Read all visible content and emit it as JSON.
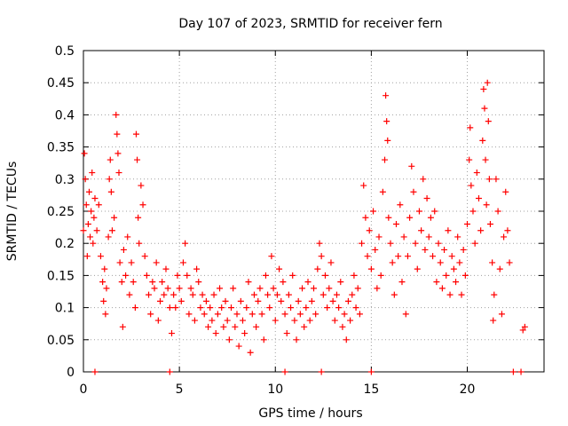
{
  "chart_data": {
    "type": "scatter",
    "title": "Day 107 of 2023, SRMTID for receiver fern",
    "xlabel": "GPS time / hours",
    "ylabel": "SRMTID / TECUs",
    "xlim": [
      0,
      24
    ],
    "ylim": [
      0,
      0.5
    ],
    "grid": true,
    "x_ticks": [
      0,
      5,
      10,
      15,
      20
    ],
    "x_tick_labels": [
      "0",
      "5",
      "10",
      "15",
      "20"
    ],
    "y_ticks": [
      0,
      0.05,
      0.1,
      0.15,
      0.2,
      0.25,
      0.3,
      0.35,
      0.4,
      0.45,
      0.5
    ],
    "y_tick_labels": [
      "0",
      "0.05",
      "0.1",
      "0.15",
      "0.2",
      "0.25",
      "0.3",
      "0.35",
      "0.4",
      "0.45",
      "0.5"
    ],
    "marker": "+",
    "color": "#ff0000",
    "series": [
      {
        "name": "SRMTID",
        "points": [
          [
            0.0,
            0.22
          ],
          [
            0.05,
            0.34
          ],
          [
            0.1,
            0.3
          ],
          [
            0.15,
            0.26
          ],
          [
            0.2,
            0.18
          ],
          [
            0.25,
            0.23
          ],
          [
            0.3,
            0.28
          ],
          [
            0.35,
            0.21
          ],
          [
            0.4,
            0.25
          ],
          [
            0.45,
            0.31
          ],
          [
            0.5,
            0.2
          ],
          [
            0.55,
            0.24
          ],
          [
            0.6,
            0.27
          ],
          [
            0.7,
            0.22
          ],
          [
            0.8,
            0.26
          ],
          [
            0.9,
            0.18
          ],
          [
            1.0,
            0.14
          ],
          [
            1.05,
            0.11
          ],
          [
            1.1,
            0.16
          ],
          [
            1.15,
            0.09
          ],
          [
            1.2,
            0.13
          ],
          [
            1.3,
            0.21
          ],
          [
            1.35,
            0.3
          ],
          [
            1.4,
            0.33
          ],
          [
            1.45,
            0.28
          ],
          [
            1.5,
            0.22
          ],
          [
            1.6,
            0.24
          ],
          [
            1.7,
            0.4
          ],
          [
            1.75,
            0.37
          ],
          [
            1.8,
            0.34
          ],
          [
            1.85,
            0.31
          ],
          [
            1.9,
            0.17
          ],
          [
            2.0,
            0.14
          ],
          [
            2.05,
            0.07
          ],
          [
            2.1,
            0.19
          ],
          [
            2.2,
            0.15
          ],
          [
            2.3,
            0.21
          ],
          [
            2.4,
            0.12
          ],
          [
            2.5,
            0.17
          ],
          [
            2.6,
            0.14
          ],
          [
            2.7,
            0.1
          ],
          [
            2.75,
            0.37
          ],
          [
            2.8,
            0.33
          ],
          [
            2.85,
            0.24
          ],
          [
            2.9,
            0.2
          ],
          [
            3.0,
            0.29
          ],
          [
            3.1,
            0.26
          ],
          [
            3.2,
            0.18
          ],
          [
            3.3,
            0.15
          ],
          [
            3.4,
            0.12
          ],
          [
            3.5,
            0.09
          ],
          [
            3.6,
            0.14
          ],
          [
            3.7,
            0.13
          ],
          [
            3.8,
            0.17
          ],
          [
            3.9,
            0.08
          ],
          [
            4.0,
            0.11
          ],
          [
            4.1,
            0.14
          ],
          [
            4.2,
            0.12
          ],
          [
            4.3,
            0.16
          ],
          [
            4.4,
            0.13
          ],
          [
            4.5,
            0.1
          ],
          [
            4.6,
            0.06
          ],
          [
            4.7,
            0.12
          ],
          [
            4.8,
            0.1
          ],
          [
            4.9,
            0.15
          ],
          [
            5.0,
            0.13
          ],
          [
            5.1,
            0.11
          ],
          [
            5.2,
            0.17
          ],
          [
            5.3,
            0.2
          ],
          [
            5.4,
            0.15
          ],
          [
            5.5,
            0.09
          ],
          [
            5.6,
            0.13
          ],
          [
            5.7,
            0.12
          ],
          [
            5.8,
            0.08
          ],
          [
            5.9,
            0.16
          ],
          [
            6.0,
            0.14
          ],
          [
            6.1,
            0.1
          ],
          [
            6.2,
            0.12
          ],
          [
            6.3,
            0.09
          ],
          [
            6.4,
            0.11
          ],
          [
            6.5,
            0.07
          ],
          [
            6.6,
            0.1
          ],
          [
            6.7,
            0.08
          ],
          [
            6.8,
            0.12
          ],
          [
            6.9,
            0.06
          ],
          [
            7.0,
            0.09
          ],
          [
            7.1,
            0.13
          ],
          [
            7.2,
            0.1
          ],
          [
            7.3,
            0.07
          ],
          [
            7.4,
            0.11
          ],
          [
            7.5,
            0.08
          ],
          [
            7.6,
            0.05
          ],
          [
            7.7,
            0.1
          ],
          [
            7.8,
            0.13
          ],
          [
            7.9,
            0.07
          ],
          [
            8.0,
            0.09
          ],
          [
            8.1,
            0.04
          ],
          [
            8.2,
            0.11
          ],
          [
            8.3,
            0.08
          ],
          [
            8.4,
            0.06
          ],
          [
            8.5,
            0.1
          ],
          [
            8.6,
            0.14
          ],
          [
            8.7,
            0.03
          ],
          [
            8.8,
            0.09
          ],
          [
            8.9,
            0.12
          ],
          [
            9.0,
            0.07
          ],
          [
            9.1,
            0.11
          ],
          [
            9.2,
            0.13
          ],
          [
            9.3,
            0.09
          ],
          [
            9.4,
            0.05
          ],
          [
            9.5,
            0.15
          ],
          [
            9.6,
            0.12
          ],
          [
            9.7,
            0.1
          ],
          [
            9.8,
            0.18
          ],
          [
            9.9,
            0.13
          ],
          [
            10.0,
            0.08
          ],
          [
            10.1,
            0.12
          ],
          [
            10.2,
            0.16
          ],
          [
            10.3,
            0.11
          ],
          [
            10.4,
            0.14
          ],
          [
            10.5,
            0.09
          ],
          [
            10.6,
            0.06
          ],
          [
            10.7,
            0.12
          ],
          [
            10.8,
            0.1
          ],
          [
            10.9,
            0.15
          ],
          [
            11.0,
            0.08
          ],
          [
            11.1,
            0.05
          ],
          [
            11.2,
            0.11
          ],
          [
            11.3,
            0.09
          ],
          [
            11.4,
            0.13
          ],
          [
            11.5,
            0.07
          ],
          [
            11.6,
            0.1
          ],
          [
            11.7,
            0.14
          ],
          [
            11.8,
            0.08
          ],
          [
            11.9,
            0.11
          ],
          [
            12.0,
            0.13
          ],
          [
            12.1,
            0.09
          ],
          [
            12.2,
            0.16
          ],
          [
            12.3,
            0.2
          ],
          [
            12.4,
            0.18
          ],
          [
            12.5,
            0.12
          ],
          [
            12.6,
            0.15
          ],
          [
            12.7,
            0.1
          ],
          [
            12.8,
            0.13
          ],
          [
            12.9,
            0.17
          ],
          [
            13.0,
            0.11
          ],
          [
            13.1,
            0.08
          ],
          [
            13.2,
            0.12
          ],
          [
            13.3,
            0.1
          ],
          [
            13.4,
            0.14
          ],
          [
            13.5,
            0.07
          ],
          [
            13.6,
            0.09
          ],
          [
            13.7,
            0.05
          ],
          [
            13.8,
            0.11
          ],
          [
            13.9,
            0.08
          ],
          [
            14.0,
            0.12
          ],
          [
            14.1,
            0.15
          ],
          [
            14.2,
            0.1
          ],
          [
            14.3,
            0.13
          ],
          [
            14.4,
            0.09
          ],
          [
            14.5,
            0.2
          ],
          [
            14.6,
            0.29
          ],
          [
            14.7,
            0.24
          ],
          [
            14.8,
            0.18
          ],
          [
            14.9,
            0.22
          ],
          [
            15.0,
            0.16
          ],
          [
            15.1,
            0.25
          ],
          [
            15.2,
            0.19
          ],
          [
            15.3,
            0.13
          ],
          [
            15.4,
            0.21
          ],
          [
            15.5,
            0.15
          ],
          [
            15.6,
            0.28
          ],
          [
            15.7,
            0.33
          ],
          [
            15.75,
            0.43
          ],
          [
            15.8,
            0.39
          ],
          [
            15.85,
            0.36
          ],
          [
            15.9,
            0.24
          ],
          [
            16.0,
            0.2
          ],
          [
            16.1,
            0.17
          ],
          [
            16.2,
            0.12
          ],
          [
            16.3,
            0.23
          ],
          [
            16.4,
            0.18
          ],
          [
            16.5,
            0.26
          ],
          [
            16.6,
            0.14
          ],
          [
            16.7,
            0.21
          ],
          [
            16.8,
            0.09
          ],
          [
            16.9,
            0.18
          ],
          [
            17.0,
            0.24
          ],
          [
            17.1,
            0.32
          ],
          [
            17.2,
            0.28
          ],
          [
            17.3,
            0.2
          ],
          [
            17.4,
            0.16
          ],
          [
            17.5,
            0.25
          ],
          [
            17.6,
            0.22
          ],
          [
            17.7,
            0.3
          ],
          [
            17.8,
            0.19
          ],
          [
            17.9,
            0.27
          ],
          [
            18.0,
            0.21
          ],
          [
            18.1,
            0.24
          ],
          [
            18.2,
            0.18
          ],
          [
            18.3,
            0.25
          ],
          [
            18.4,
            0.14
          ],
          [
            18.5,
            0.2
          ],
          [
            18.6,
            0.17
          ],
          [
            18.7,
            0.13
          ],
          [
            18.8,
            0.19
          ],
          [
            18.9,
            0.15
          ],
          [
            19.0,
            0.22
          ],
          [
            19.1,
            0.12
          ],
          [
            19.2,
            0.18
          ],
          [
            19.3,
            0.16
          ],
          [
            19.4,
            0.14
          ],
          [
            19.5,
            0.21
          ],
          [
            19.6,
            0.17
          ],
          [
            19.7,
            0.12
          ],
          [
            19.8,
            0.19
          ],
          [
            19.9,
            0.15
          ],
          [
            20.0,
            0.23
          ],
          [
            20.1,
            0.33
          ],
          [
            20.15,
            0.38
          ],
          [
            20.2,
            0.29
          ],
          [
            20.3,
            0.25
          ],
          [
            20.4,
            0.2
          ],
          [
            20.5,
            0.31
          ],
          [
            20.6,
            0.27
          ],
          [
            20.7,
            0.22
          ],
          [
            20.8,
            0.36
          ],
          [
            20.85,
            0.44
          ],
          [
            20.9,
            0.41
          ],
          [
            20.95,
            0.33
          ],
          [
            21.0,
            0.26
          ],
          [
            21.05,
            0.45
          ],
          [
            21.1,
            0.39
          ],
          [
            21.15,
            0.3
          ],
          [
            21.2,
            0.23
          ],
          [
            21.3,
            0.17
          ],
          [
            21.35,
            0.08
          ],
          [
            21.4,
            0.12
          ],
          [
            21.5,
            0.3
          ],
          [
            21.6,
            0.25
          ],
          [
            21.7,
            0.16
          ],
          [
            21.8,
            0.09
          ],
          [
            21.9,
            0.21
          ],
          [
            22.0,
            0.28
          ],
          [
            22.1,
            0.22
          ],
          [
            22.2,
            0.17
          ],
          [
            22.9,
            0.065
          ],
          [
            23.0,
            0.07
          ],
          [
            0.6,
            0.0
          ],
          [
            4.5,
            0.0
          ],
          [
            10.5,
            0.0
          ],
          [
            12.4,
            0.0
          ],
          [
            15.0,
            0.0
          ],
          [
            22.4,
            0.0
          ],
          [
            22.8,
            0.0
          ]
        ]
      }
    ]
  }
}
